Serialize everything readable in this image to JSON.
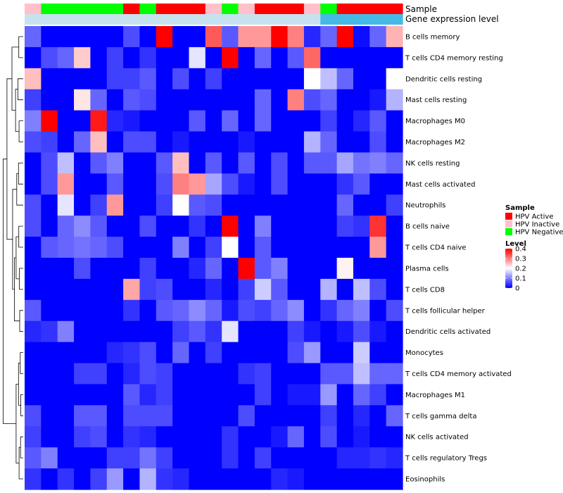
{
  "chart_data": {
    "type": "heatmap",
    "title": "",
    "xlabel": "",
    "ylabel": "",
    "annotation_rows": [
      {
        "label": "Sample",
        "values": [
          "HPV Inactive",
          "HPV Negative",
          "HPV Negative",
          "HPV Negative",
          "HPV Negative",
          "HPV Negative",
          "HPV Active",
          "HPV Negative",
          "HPV Active",
          "HPV Active",
          "HPV Active",
          "HPV Inactive",
          "HPV Negative",
          "HPV Inactive",
          "HPV Active",
          "HPV Active",
          "HPV Active",
          "HPV Inactive",
          "HPV Negative",
          "HPV Active",
          "HPV Active",
          "HPV Active",
          "HPV Active"
        ]
      },
      {
        "label": "Gene expression level",
        "values": [
          "low",
          "low",
          "low",
          "low",
          "low",
          "low",
          "low",
          "low",
          "low",
          "low",
          "low",
          "low",
          "low",
          "low",
          "low",
          "low",
          "low",
          "low",
          "high",
          "high",
          "high",
          "high",
          "high"
        ]
      }
    ],
    "row_labels": [
      "B cells memory",
      "T cells CD4 memory resting",
      "Dendritic cells resting",
      "Mast cells resting",
      "Macrophages M0",
      "Macrophages M2",
      "NK cells resting",
      "Mast cells activated",
      "Neutrophils",
      "B cells naive",
      "T cells CD4 naive",
      "Plasma cells",
      "T cells CD8",
      "T cells follicular helper",
      "Dendritic cells activated",
      "Monocytes",
      "T cells CD4 memory activated",
      "Macrophages M1",
      "T cells gamma delta",
      "NK cells activated",
      "T cells regulatory  Tregs",
      "Eosinophils"
    ],
    "values": [
      [
        0.08,
        0,
        0,
        0,
        0,
        0,
        0.06,
        0,
        0.4,
        0,
        0,
        0.33,
        0.07,
        0.28,
        0.28,
        0.4,
        0.3,
        0.03,
        0.08,
        0.4,
        0.01,
        0.08,
        0.26
      ],
      [
        0,
        0.06,
        0.08,
        0.24,
        0,
        0.05,
        0,
        0.04,
        0,
        0,
        0.18,
        0,
        0.4,
        0,
        0.08,
        0,
        0.07,
        0.32,
        0,
        0,
        0,
        0,
        0
      ],
      [
        0.25,
        0,
        0,
        0,
        0,
        0.05,
        0.05,
        0.07,
        0,
        0.06,
        0,
        0.05,
        0,
        0,
        0,
        0,
        0,
        0.2,
        0.15,
        0.08,
        0,
        0,
        0.2
      ],
      [
        0.05,
        0,
        0,
        0.22,
        0.08,
        0,
        0.07,
        0.06,
        0,
        0,
        0,
        0,
        0,
        0,
        0.08,
        0,
        0.3,
        0.06,
        0.08,
        0,
        0,
        0.02,
        0.14
      ],
      [
        0.1,
        0.4,
        0,
        0,
        0.38,
        0.03,
        0.02,
        0,
        0,
        0,
        0.07,
        0,
        0.08,
        0,
        0.08,
        0,
        0,
        0,
        0.05,
        0,
        0.03,
        0.07,
        0
      ],
      [
        0.06,
        0.05,
        0,
        0.08,
        0.25,
        0,
        0.06,
        0.06,
        0,
        0.02,
        0,
        0,
        0,
        0.02,
        0,
        0,
        0,
        0.14,
        0.08,
        0,
        0,
        0.06,
        0
      ],
      [
        0,
        0.06,
        0.15,
        0,
        0.07,
        0.1,
        0,
        0,
        0.07,
        0.25,
        0,
        0.07,
        0,
        0.07,
        0,
        0.06,
        0,
        0.07,
        0.07,
        0.13,
        0.09,
        0.1,
        0.08
      ],
      [
        0,
        0.06,
        0.28,
        0,
        0,
        0.07,
        0,
        0,
        0.06,
        0.3,
        0.28,
        0.13,
        0.06,
        0.02,
        0,
        0.06,
        0,
        0,
        0,
        0.04,
        0.07,
        0,
        0
      ],
      [
        0.06,
        0,
        0.18,
        0,
        0.05,
        0.28,
        0,
        0,
        0.05,
        0.2,
        0.07,
        0.06,
        0,
        0,
        0,
        0,
        0,
        0,
        0,
        0.08,
        0,
        0,
        0.05
      ],
      [
        0.06,
        0,
        0.08,
        0.11,
        0.07,
        0,
        0,
        0.06,
        0,
        0,
        0.04,
        0,
        0.4,
        0,
        0.1,
        0,
        0,
        0,
        0,
        0.05,
        0.04,
        0.36,
        0
      ],
      [
        0,
        0.07,
        0.08,
        0.09,
        0.08,
        0.06,
        0,
        0,
        0,
        0.1,
        0,
        0.05,
        0.2,
        0,
        0.07,
        0,
        0,
        0,
        0,
        0,
        0,
        0.28,
        0
      ],
      [
        0,
        0,
        0,
        0.06,
        0,
        0,
        0,
        0.05,
        0,
        0,
        0.03,
        0.08,
        0,
        0.4,
        0.07,
        0.1,
        0,
        0,
        0,
        0.21,
        0,
        0,
        0
      ],
      [
        0,
        0,
        0,
        0,
        0,
        0,
        0.27,
        0.05,
        0.06,
        0,
        0,
        0.03,
        0,
        0.05,
        0.16,
        0.07,
        0,
        0,
        0.14,
        0,
        0.15,
        0.06,
        0
      ],
      [
        0.07,
        0,
        0,
        0,
        0,
        0,
        0.04,
        0,
        0.07,
        0.08,
        0.11,
        0.08,
        0.02,
        0.06,
        0.05,
        0.08,
        0.11,
        0,
        0.04,
        0.08,
        0.1,
        0,
        0.06
      ],
      [
        0.03,
        0.04,
        0.1,
        0,
        0,
        0,
        0,
        0,
        0,
        0.05,
        0.07,
        0.04,
        0.18,
        0,
        0,
        0,
        0.05,
        0.02,
        0,
        0.02,
        0.06,
        0.02,
        0
      ],
      [
        0,
        0,
        0,
        0,
        0,
        0.03,
        0.04,
        0.06,
        0,
        0.08,
        0,
        0.05,
        0,
        0,
        0,
        0,
        0.06,
        0.12,
        0,
        0,
        0.16,
        0,
        0
      ],
      [
        0,
        0,
        0,
        0.05,
        0.05,
        0,
        0.03,
        0.06,
        0.05,
        0,
        0,
        0,
        0,
        0.04,
        0.05,
        0,
        0,
        0,
        0.07,
        0.07,
        0.15,
        0.08,
        0.08
      ],
      [
        0,
        0,
        0,
        0,
        0,
        0,
        0.07,
        0.03,
        0.05,
        0,
        0,
        0,
        0,
        0,
        0.05,
        0,
        0.02,
        0.02,
        0.12,
        0,
        0.08,
        0.05,
        0
      ],
      [
        0.06,
        0,
        0,
        0.07,
        0.07,
        0,
        0.06,
        0.06,
        0.06,
        0,
        0,
        0,
        0,
        0.06,
        0,
        0,
        0,
        0,
        0.05,
        0,
        0.03,
        0,
        0.08
      ],
      [
        0.05,
        0,
        0,
        0.05,
        0.06,
        0,
        0.04,
        0.03,
        0,
        0,
        0,
        0,
        0.04,
        0,
        0,
        0.02,
        0.08,
        0,
        0.06,
        0,
        0.02,
        0,
        0
      ],
      [
        0.07,
        0.1,
        0,
        0,
        0,
        0.05,
        0.05,
        0.09,
        0.05,
        0,
        0,
        0,
        0.04,
        0,
        0.05,
        0,
        0,
        0,
        0,
        0.03,
        0.03,
        0.04,
        0.03
      ],
      [
        0.04,
        0,
        0.04,
        0,
        0.05,
        0.12,
        0,
        0.14,
        0.04,
        0.03,
        0,
        0,
        0,
        0,
        0,
        0.03,
        0.02,
        0,
        0,
        0,
        0,
        0,
        0
      ]
    ],
    "legend": {
      "sample_title": "Sample",
      "sample_entries": [
        {
          "label": "HPV Active",
          "color": "#ff0000"
        },
        {
          "label": "HPV Inactive",
          "color": "#ffc0cb"
        },
        {
          "label": "HPV Negative",
          "color": "#00ff00"
        }
      ],
      "level_title": "Level",
      "level_ticks": [
        {
          "label": "0",
          "value": 0
        },
        {
          "label": "0.1",
          "value": 0.1
        },
        {
          "label": "0.2",
          "value": 0.2
        },
        {
          "label": "0.3",
          "value": 0.3
        },
        {
          "label": "0.4",
          "value": 0.4
        }
      ],
      "level_range": [
        0,
        0.4
      ]
    },
    "colors": {
      "low": "#0000ff",
      "mid": "#ffffff",
      "high": "#ff0000",
      "gene_low": "#c6e2ef",
      "gene_high": "#45b9e6",
      "dendro": "#000000"
    }
  }
}
